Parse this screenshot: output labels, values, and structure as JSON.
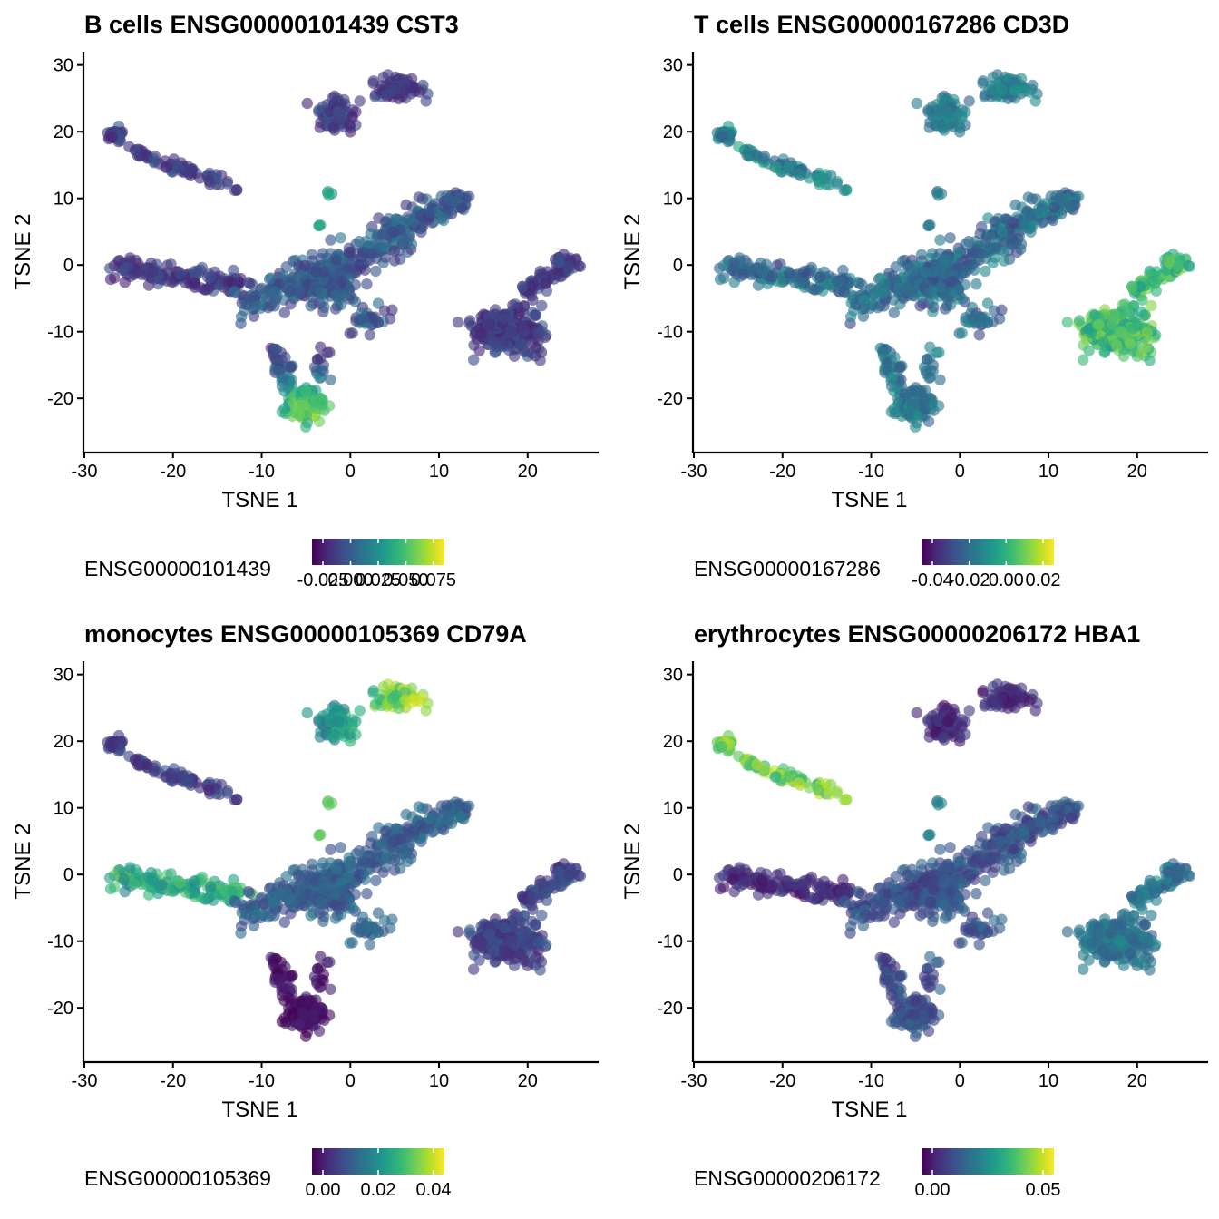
{
  "colors": {
    "viridis": [
      "#440154",
      "#482878",
      "#3e4a89",
      "#31688e",
      "#26828e",
      "#1f9e89",
      "#35b779",
      "#6ece58",
      "#b5de2b",
      "#fde725"
    ],
    "axis": "#000000",
    "background": "#ffffff"
  },
  "chart_data": [
    {
      "type": "scatter",
      "title": "B cells ENSG00000101439 CST3",
      "xlabel": "TSNE 1",
      "ylabel": "TSNE 2",
      "xlim": [
        -30,
        28
      ],
      "ylim": [
        -28,
        32
      ],
      "xticks": [
        "-30",
        "-20",
        "-10",
        "0",
        "10",
        "20"
      ],
      "yticks": [
        "30",
        "20",
        "10",
        "0",
        "-10",
        "-20"
      ],
      "legend": {
        "title": "ENSG00000101439",
        "position": "bottom",
        "labels": [
          "-0.025",
          "0.000",
          "0.025",
          "0.050",
          "0.075"
        ]
      },
      "highlight": "bottom-cluster"
    },
    {
      "type": "scatter",
      "title": "T cells ENSG00000167286 CD3D",
      "xlabel": "TSNE 1",
      "ylabel": "TSNE 2",
      "xlim": [
        -30,
        28
      ],
      "ylim": [
        -28,
        32
      ],
      "xticks": [
        "-30",
        "-20",
        "-10",
        "0",
        "10",
        "20"
      ],
      "yticks": [
        "30",
        "20",
        "10",
        "0",
        "-10",
        "-20"
      ],
      "legend": {
        "title": "ENSG00000167286",
        "position": "bottom",
        "labels": [
          "-0.04",
          "-0.02",
          "0.00",
          "0.02"
        ]
      },
      "highlight": "right-cluster"
    },
    {
      "type": "scatter",
      "title": "monocytes ENSG00000105369 CD79A",
      "xlabel": "TSNE 1",
      "ylabel": "TSNE 2",
      "xlim": [
        -30,
        28
      ],
      "ylim": [
        -28,
        32
      ],
      "xticks": [
        "-30",
        "-20",
        "-10",
        "0",
        "10",
        "20"
      ],
      "yticks": [
        "30",
        "20",
        "10",
        "0",
        "-10",
        "-20"
      ],
      "legend": {
        "title": "ENSG00000105369",
        "position": "bottom",
        "labels": [
          "0.00",
          "0.02",
          "0.04"
        ]
      },
      "highlight": "top-cluster-and-left-arm"
    },
    {
      "type": "scatter",
      "title": "erythrocytes ENSG00000206172 HBA1",
      "xlabel": "TSNE 1",
      "ylabel": "TSNE 2",
      "xlim": [
        -30,
        28
      ],
      "ylim": [
        -28,
        32
      ],
      "xticks": [
        "-30",
        "-20",
        "-10",
        "0",
        "10",
        "20"
      ],
      "yticks": [
        "30",
        "20",
        "10",
        "0",
        "-10",
        "-20"
      ],
      "legend": {
        "title": "ENSG00000206172",
        "position": "bottom",
        "labels": [
          "0.00",
          "0.05"
        ]
      },
      "highlight": "upper-left-arm"
    }
  ]
}
